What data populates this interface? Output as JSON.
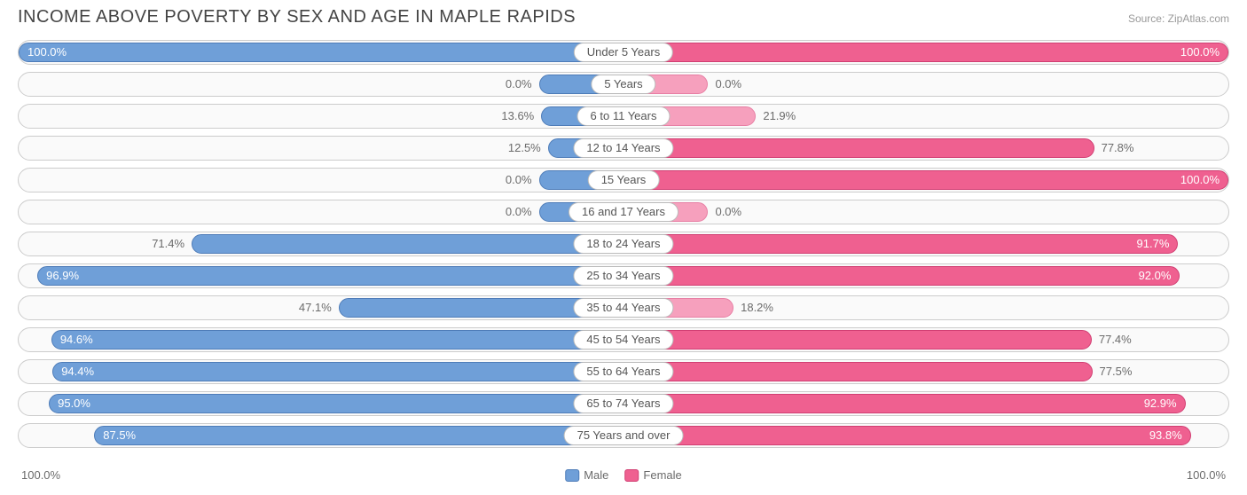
{
  "title": "INCOME ABOVE POVERTY BY SEX AND AGE IN MAPLE RAPIDS",
  "source": "Source: ZipAtlas.com",
  "axis": {
    "left": "100.0%",
    "right": "100.0%"
  },
  "legend": {
    "male": "Male",
    "female": "Female"
  },
  "colors": {
    "male_fill": "#6f9fd8",
    "male_border": "#4e7cb8",
    "female_fill": "#ef6090",
    "female_border": "#d13f73",
    "female_light_fill": "#f6a0bd",
    "female_light_border": "#e77fa4",
    "track_border": "#cccccc",
    "track_bg": "#fafafa",
    "text": "#6b6b6b",
    "title_text": "#444444"
  },
  "chart": {
    "type": "diverging-bar",
    "max": 100.0,
    "label_inside_threshold": 80.0,
    "min_bar_pct_for_zero": 14.0,
    "rows": [
      {
        "age": "Under 5 Years",
        "male": 100.0,
        "female": 100.0,
        "female_light": false
      },
      {
        "age": "5 Years",
        "male": 0.0,
        "female": 0.0,
        "female_light": true
      },
      {
        "age": "6 to 11 Years",
        "male": 13.6,
        "female": 21.9,
        "female_light": true
      },
      {
        "age": "12 to 14 Years",
        "male": 12.5,
        "female": 77.8,
        "female_light": false
      },
      {
        "age": "15 Years",
        "male": 0.0,
        "female": 100.0,
        "female_light": false
      },
      {
        "age": "16 and 17 Years",
        "male": 0.0,
        "female": 0.0,
        "female_light": true
      },
      {
        "age": "18 to 24 Years",
        "male": 71.4,
        "female": 91.7,
        "female_light": false
      },
      {
        "age": "25 to 34 Years",
        "male": 96.9,
        "female": 92.0,
        "female_light": false
      },
      {
        "age": "35 to 44 Years",
        "male": 47.1,
        "female": 18.2,
        "female_light": true
      },
      {
        "age": "45 to 54 Years",
        "male": 94.6,
        "female": 77.4,
        "female_light": false
      },
      {
        "age": "55 to 64 Years",
        "male": 94.4,
        "female": 77.5,
        "female_light": false
      },
      {
        "age": "65 to 74 Years",
        "male": 95.0,
        "female": 92.9,
        "female_light": false
      },
      {
        "age": "75 Years and over",
        "male": 87.5,
        "female": 93.8,
        "female_light": false
      }
    ]
  }
}
